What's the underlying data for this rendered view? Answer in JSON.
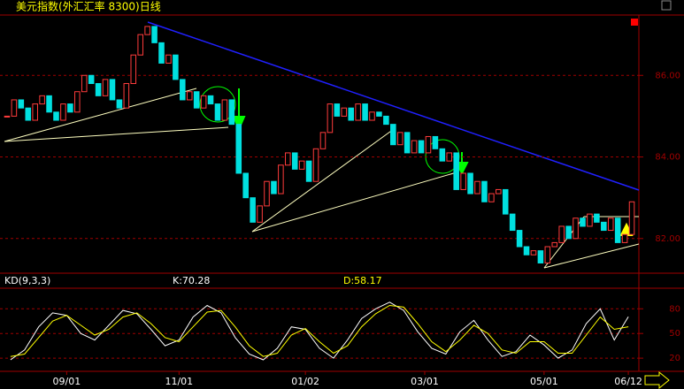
{
  "chart_data": [
    {
      "type": "candlestick",
      "title": "美元指数(外汇汇率 8300)日线",
      "close": [
        85.0,
        85.4,
        85.2,
        84.9,
        85.3,
        85.5,
        85.1,
        84.9,
        85.3,
        85.1,
        85.6,
        86.0,
        85.8,
        85.5,
        85.9,
        85.4,
        85.2,
        85.8,
        86.5,
        87.0,
        87.2,
        86.8,
        86.3,
        86.5,
        85.9,
        85.4,
        85.6,
        85.2,
        85.5,
        85.3,
        84.9,
        85.4,
        84.8,
        83.6,
        83.0,
        82.4,
        82.8,
        83.4,
        83.1,
        83.8,
        84.1,
        83.7,
        83.9,
        83.4,
        84.2,
        84.6,
        85.3,
        85.0,
        85.2,
        84.9,
        85.3,
        84.9,
        85.1,
        85.0,
        84.8,
        84.3,
        84.6,
        84.1,
        84.4,
        84.1,
        84.5,
        84.2,
        83.9,
        84.1,
        83.2,
        83.6,
        83.1,
        83.4,
        82.9,
        83.1,
        83.2,
        82.6,
        82.2,
        81.8,
        81.6,
        81.7,
        81.4,
        81.8,
        81.9,
        82.3,
        82.0,
        82.5,
        82.3,
        82.6,
        82.4,
        82.2,
        82.5,
        81.9,
        82.1,
        82.9
      ],
      "up_color": "#ff3c3c",
      "down_color": "#00e0e0",
      "ylim": [
        81.15,
        87.48
      ],
      "yticks": [
        {
          "value": 82,
          "label": "82.00"
        },
        {
          "value": 84,
          "label": "84.00"
        },
        {
          "value": 86,
          "label": "86.00"
        }
      ],
      "grid": true,
      "xlim": [
        0,
        90
      ],
      "xticks": [
        {
          "value": 9,
          "label": "09/01"
        },
        {
          "value": 25,
          "label": "11/01"
        },
        {
          "value": 43,
          "label": "01/02"
        },
        {
          "value": 60,
          "label": "03/01"
        },
        {
          "value": 77,
          "label": "05/01"
        },
        {
          "value": 89,
          "label": "06/12"
        }
      ]
    },
    {
      "type": "line",
      "title": "KD(9,3,3)",
      "series": [
        {
          "name": "K:70.28",
          "color": "#ffffff",
          "values": [
            18,
            30,
            58,
            75,
            72,
            50,
            42,
            60,
            78,
            74,
            55,
            35,
            42,
            70,
            84,
            75,
            45,
            25,
            18,
            32,
            58,
            55,
            32,
            20,
            42,
            68,
            80,
            88,
            78,
            52,
            32,
            25,
            52,
            66,
            42,
            22,
            28,
            48,
            36,
            20,
            30,
            62,
            80,
            42,
            70.28
          ]
        },
        {
          "name": "D:58.17",
          "color": "#ffff00",
          "values": [
            22,
            25,
            45,
            65,
            72,
            60,
            48,
            55,
            70,
            75,
            62,
            45,
            40,
            58,
            76,
            78,
            58,
            35,
            22,
            26,
            48,
            56,
            40,
            26,
            35,
            58,
            74,
            84,
            82,
            62,
            40,
            28,
            42,
            60,
            50,
            30,
            26,
            40,
            40,
            26,
            26,
            48,
            70,
            55,
            58.17
          ]
        }
      ],
      "ylim": [
        4,
        105
      ],
      "yticks": [
        20,
        50,
        80
      ],
      "grid": true
    }
  ]
}
